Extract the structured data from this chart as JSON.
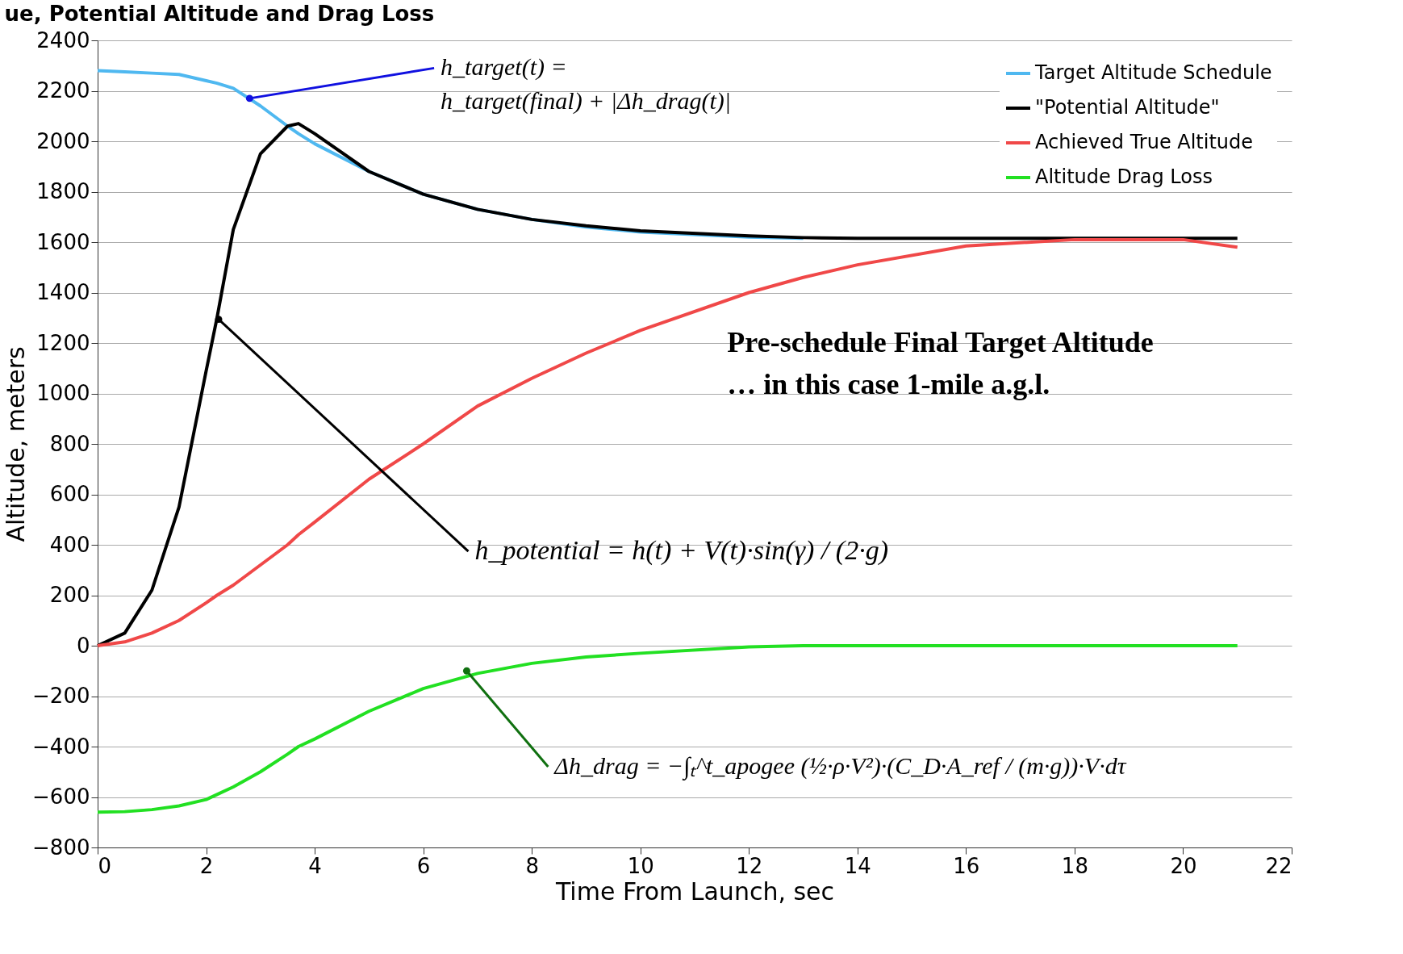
{
  "chart_data": {
    "type": "line",
    "title": "ue, Potential Altitude and Drag Loss",
    "xlabel": "Time From Launch, sec",
    "ylabel": "Altitude, meters",
    "xlim": [
      0,
      22
    ],
    "xticks": [
      0,
      2,
      4,
      6,
      8,
      10,
      12,
      14,
      16,
      18,
      20,
      22
    ],
    "ylim": [
      -800,
      2400
    ],
    "yticks": [
      -800,
      -600,
      -400,
      -200,
      0,
      200,
      400,
      600,
      800,
      1000,
      1200,
      1400,
      1600,
      1800,
      2000,
      2200,
      2400
    ],
    "grid": "y",
    "legend": "top right",
    "marker": "none",
    "line_style": "solid",
    "x": [
      0,
      0.5,
      1,
      1.5,
      2,
      2.2,
      2.5,
      3,
      3.5,
      3.7,
      4,
      5,
      6,
      7,
      8,
      9,
      10,
      12,
      13,
      14,
      16,
      18,
      20,
      21
    ],
    "series": [
      {
        "name": "Target Altitude Schedule",
        "color": "#4fb8f0",
        "values": [
          2280,
          2275,
          2270,
          2265,
          2240,
          2230,
          2210,
          2140,
          2060,
          2030,
          1990,
          1880,
          1790,
          1730,
          1690,
          1660,
          1640,
          1620,
          1615,
          null,
          null,
          null,
          null,
          null
        ]
      },
      {
        "name": "\"Potential Altitude\"",
        "color": "#000000",
        "values": [
          0,
          50,
          220,
          550,
          1090,
          1300,
          1650,
          1950,
          2060,
          2070,
          2030,
          1880,
          1790,
          1730,
          1690,
          1665,
          1645,
          1625,
          1618,
          1615,
          1615,
          1615,
          1615,
          1615
        ]
      },
      {
        "name": "Achieved True Altitude",
        "color": "#f04848",
        "values": [
          0,
          15,
          50,
          100,
          170,
          200,
          240,
          320,
          400,
          440,
          490,
          660,
          800,
          950,
          1060,
          1160,
          1250,
          1400,
          1460,
          1510,
          1585,
          1610,
          1610,
          1580
        ]
      },
      {
        "name": "Altitude Drag Loss",
        "color": "#22e022",
        "values": [
          -660,
          -658,
          -650,
          -635,
          -610,
          -590,
          -560,
          -500,
          -430,
          -400,
          -370,
          -260,
          -170,
          -110,
          -70,
          -45,
          -30,
          -5,
          0,
          0,
          0,
          0,
          0,
          0
        ]
      }
    ],
    "annotations": [
      {
        "text": "h_target(t) =\nh_target(final) + |Δh_drag(t)|",
        "x": 2.8,
        "y": 2170
      },
      {
        "text": "h_potential = h(t) + V(t)·sin(γ) / (2·g)",
        "x": 2.23,
        "y": 1294
      },
      {
        "text": "Δh_drag = −∫ₜ^t_apogee (½·ρ·V²)·(C_D·A_ref / (m·g))·V·dτ",
        "x": 6.8,
        "y": -100
      },
      "Pre-schedule Final Target Altitude\n… in this case 1-mile a.g.l."
    ]
  }
}
